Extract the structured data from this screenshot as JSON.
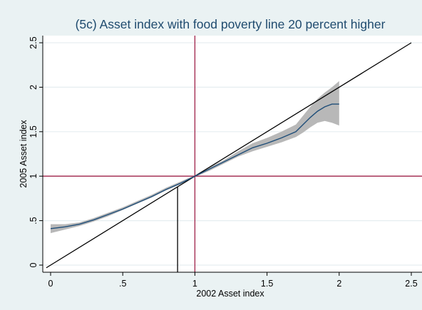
{
  "chart_data": {
    "type": "line",
    "title": "(5c) Asset index with food poverty line 20 percent higher",
    "xlabel": "2002 Asset index",
    "ylabel": "2005 Asset index",
    "xlim": [
      0,
      2.5
    ],
    "ylim": [
      0,
      2.5
    ],
    "x_ticks": [
      0,
      0.5,
      1,
      1.5,
      2,
      2.5
    ],
    "x_tick_labels": [
      "0",
      ".5",
      "1",
      "1.5",
      "2",
      "2.5"
    ],
    "y_ticks": [
      0,
      0.5,
      1,
      1.5,
      2,
      2.5
    ],
    "y_tick_labels": [
      "0",
      ".5",
      "1",
      "1.5",
      "2",
      "2.5"
    ],
    "grid": true,
    "reference_lines": {
      "forty_five_degree": {
        "from": [
          -0.03,
          -0.03
        ],
        "to": [
          2.5,
          2.5
        ],
        "color": "#000000"
      },
      "vertical": {
        "x": 1,
        "color": "#a0234a"
      },
      "horizontal": {
        "y": 1,
        "color": "#a0234a"
      },
      "fixed_point_drop": {
        "x": 0.88,
        "y": 0.88,
        "color": "#000000"
      }
    },
    "series": [
      {
        "color": "#1f4e79",
        "band_color": "#b8b8b8",
        "x": [
          0.0,
          0.1,
          0.2,
          0.3,
          0.4,
          0.5,
          0.6,
          0.7,
          0.8,
          0.9,
          1.0,
          1.1,
          1.2,
          1.3,
          1.4,
          1.5,
          1.6,
          1.7,
          1.75,
          1.8,
          1.85,
          1.9,
          1.95,
          2.0
        ],
        "y": [
          0.41,
          0.43,
          0.46,
          0.51,
          0.57,
          0.63,
          0.7,
          0.77,
          0.85,
          0.92,
          1.0,
          1.08,
          1.16,
          1.24,
          1.32,
          1.37,
          1.43,
          1.5,
          1.58,
          1.66,
          1.73,
          1.78,
          1.81,
          1.81
        ],
        "lower": [
          0.36,
          0.4,
          0.44,
          0.49,
          0.55,
          0.62,
          0.69,
          0.76,
          0.84,
          0.91,
          0.99,
          1.06,
          1.14,
          1.22,
          1.28,
          1.33,
          1.38,
          1.44,
          1.49,
          1.55,
          1.6,
          1.62,
          1.6,
          1.57
        ],
        "upper": [
          0.46,
          0.46,
          0.48,
          0.53,
          0.59,
          0.65,
          0.72,
          0.79,
          0.87,
          0.94,
          1.01,
          1.1,
          1.18,
          1.28,
          1.37,
          1.43,
          1.5,
          1.58,
          1.68,
          1.78,
          1.87,
          1.94,
          2.0,
          2.07
        ]
      }
    ]
  }
}
